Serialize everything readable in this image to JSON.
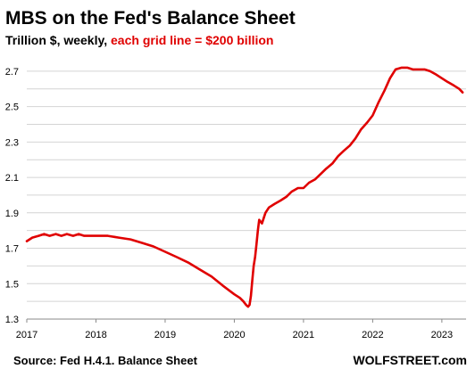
{
  "chart_data": {
    "type": "line",
    "title": "MBS on the Fed's Balance Sheet",
    "subtitle_prefix": "Trillion $, weekly, ",
    "subtitle_highlight": "each grid line = $200 billion",
    "source": "Source: Fed H.4.1. Balance Sheet",
    "brand": "WOLFSTREET.com",
    "xlabel": "",
    "ylabel": "",
    "xlim": [
      2017.0,
      2023.35
    ],
    "ylim": [
      1.3,
      2.8
    ],
    "x_ticks": [
      "2017",
      "2018",
      "2019",
      "2020",
      "2021",
      "2022",
      "2023"
    ],
    "y_ticks": [
      "1.3",
      "1.5",
      "1.7",
      "1.9",
      "2.1",
      "2.3",
      "2.5",
      "2.7"
    ],
    "grid": true,
    "legend": "none",
    "colors": {
      "line": "#e00000",
      "subtitle_highlight": "#e00000",
      "grid": "#d4d4d4",
      "text": "#000000"
    },
    "series": [
      {
        "points": [
          [
            2017.0,
            1.74
          ],
          [
            2017.08,
            1.76
          ],
          [
            2017.17,
            1.77
          ],
          [
            2017.25,
            1.78
          ],
          [
            2017.33,
            1.77
          ],
          [
            2017.42,
            1.78
          ],
          [
            2017.5,
            1.77
          ],
          [
            2017.58,
            1.78
          ],
          [
            2017.67,
            1.77
          ],
          [
            2017.75,
            1.78
          ],
          [
            2017.83,
            1.77
          ],
          [
            2017.92,
            1.77
          ],
          [
            2018.0,
            1.77
          ],
          [
            2018.17,
            1.77
          ],
          [
            2018.33,
            1.76
          ],
          [
            2018.5,
            1.75
          ],
          [
            2018.67,
            1.73
          ],
          [
            2018.83,
            1.71
          ],
          [
            2019.0,
            1.68
          ],
          [
            2019.17,
            1.65
          ],
          [
            2019.33,
            1.62
          ],
          [
            2019.5,
            1.58
          ],
          [
            2019.67,
            1.54
          ],
          [
            2019.83,
            1.49
          ],
          [
            2020.0,
            1.44
          ],
          [
            2020.08,
            1.42
          ],
          [
            2020.13,
            1.4
          ],
          [
            2020.17,
            1.38
          ],
          [
            2020.2,
            1.37
          ],
          [
            2020.22,
            1.38
          ],
          [
            2020.24,
            1.43
          ],
          [
            2020.26,
            1.52
          ],
          [
            2020.28,
            1.6
          ],
          [
            2020.3,
            1.65
          ],
          [
            2020.32,
            1.72
          ],
          [
            2020.34,
            1.8
          ],
          [
            2020.36,
            1.86
          ],
          [
            2020.4,
            1.84
          ],
          [
            2020.45,
            1.9
          ],
          [
            2020.5,
            1.93
          ],
          [
            2020.58,
            1.95
          ],
          [
            2020.67,
            1.97
          ],
          [
            2020.75,
            1.99
          ],
          [
            2020.83,
            2.02
          ],
          [
            2020.92,
            2.04
          ],
          [
            2021.0,
            2.04
          ],
          [
            2021.08,
            2.07
          ],
          [
            2021.17,
            2.09
          ],
          [
            2021.25,
            2.12
          ],
          [
            2021.33,
            2.15
          ],
          [
            2021.42,
            2.18
          ],
          [
            2021.5,
            2.22
          ],
          [
            2021.58,
            2.25
          ],
          [
            2021.67,
            2.28
          ],
          [
            2021.75,
            2.32
          ],
          [
            2021.83,
            2.37
          ],
          [
            2021.92,
            2.41
          ],
          [
            2022.0,
            2.45
          ],
          [
            2022.08,
            2.52
          ],
          [
            2022.17,
            2.59
          ],
          [
            2022.25,
            2.66
          ],
          [
            2022.33,
            2.71
          ],
          [
            2022.42,
            2.72
          ],
          [
            2022.5,
            2.72
          ],
          [
            2022.58,
            2.71
          ],
          [
            2022.67,
            2.71
          ],
          [
            2022.75,
            2.71
          ],
          [
            2022.83,
            2.7
          ],
          [
            2022.92,
            2.68
          ],
          [
            2023.0,
            2.66
          ],
          [
            2023.08,
            2.64
          ],
          [
            2023.17,
            2.62
          ],
          [
            2023.25,
            2.6
          ],
          [
            2023.3,
            2.58
          ]
        ]
      }
    ]
  }
}
